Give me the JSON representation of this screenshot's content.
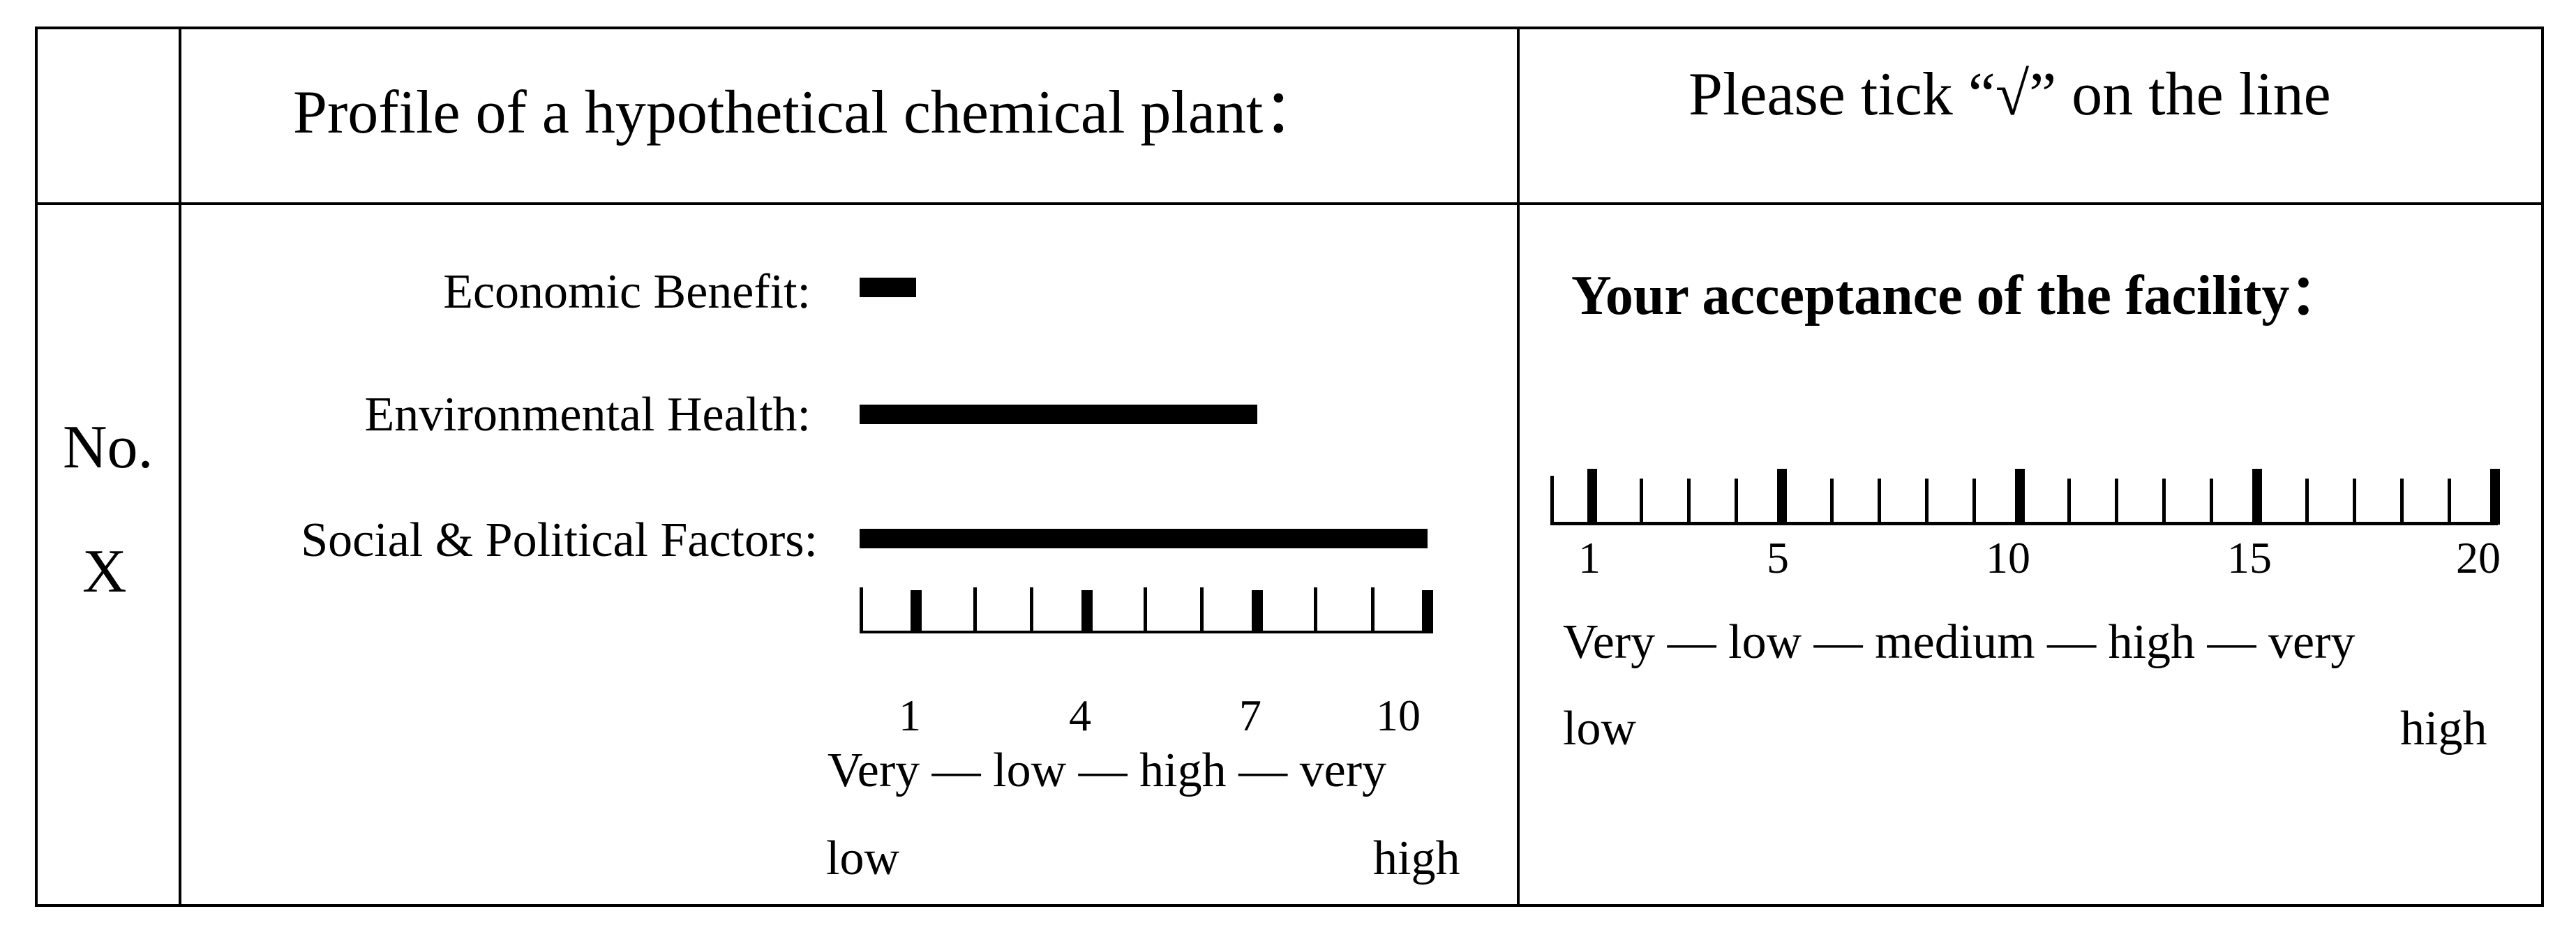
{
  "header": {
    "col2": "Profile of a hypothetical chemical plant：",
    "col3": "Please tick “√” on the line"
  },
  "row_label": {
    "line1": "No.",
    "line2": "X"
  },
  "profile": {
    "factors": [
      {
        "label": "Economic Benefit:",
        "value": 1
      },
      {
        "label": "Environmental Health:",
        "value": 7
      },
      {
        "label": "Social & Political Factors:",
        "value": 10
      }
    ],
    "scale": {
      "min": 0,
      "max": 10,
      "tick_labels": [
        "1",
        "4",
        "7",
        "10"
      ],
      "words_line1": "Very — low — high — very",
      "words_low": "low",
      "words_high": "high"
    }
  },
  "acceptance": {
    "title": "Your acceptance of the facility：",
    "scale": {
      "min": 1,
      "max": 20,
      "tick_labels": [
        "1",
        "5",
        "10",
        "15",
        "20"
      ],
      "words_line1": "Very — low — medium — high — very",
      "words_low": "low",
      "words_high": "high"
    }
  }
}
